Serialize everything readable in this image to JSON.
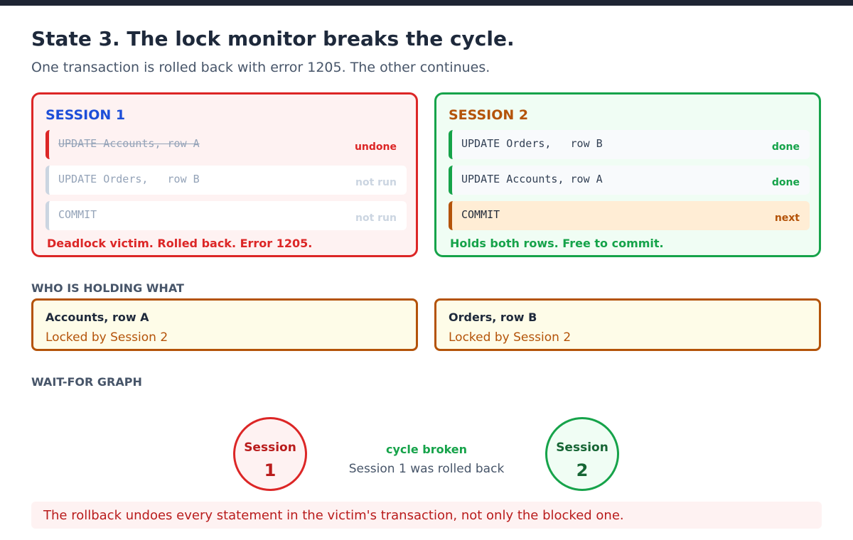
{
  "header": {
    "title": "State 3. The lock monitor breaks the cycle.",
    "subtitle": "One transaction is rolled back with error 1205. The other continues."
  },
  "sessions": [
    {
      "title": "SESSION 1",
      "statements": [
        {
          "code": "UPDATE Accounts, row A",
          "status": "undone"
        },
        {
          "code": "UPDATE Orders,   row B",
          "status": "not run"
        },
        {
          "code": "COMMIT",
          "status": "not run"
        }
      ],
      "footer": "Deadlock victim. Rolled back. Error 1205."
    },
    {
      "title": "SESSION 2",
      "statements": [
        {
          "code": "UPDATE Orders,   row B",
          "status": "done"
        },
        {
          "code": "UPDATE Accounts, row A",
          "status": "done"
        },
        {
          "code": "COMMIT",
          "status": "next"
        }
      ],
      "footer": "Holds both rows. Free to commit."
    }
  ],
  "locks": {
    "label": "WHO IS HOLDING WHAT",
    "items": [
      {
        "name": "Accounts, row A",
        "holder": "Locked by Session 2"
      },
      {
        "name": "Orders, row B",
        "holder": "Locked by Session 2"
      }
    ]
  },
  "graph": {
    "label": "WAIT-FOR GRAPH",
    "nodes": [
      {
        "label": "Session",
        "number": "1"
      },
      {
        "label": "Session",
        "number": "2"
      }
    ],
    "edge_title": "cycle broken",
    "edge_subtitle": "Session 1 was rolled back"
  },
  "note": "The rollback undoes every statement in the victim's transaction, not only the blocked one.",
  "colors": {
    "victim": "#dc2626",
    "survivor": "#16a34a",
    "lock": "#b45309",
    "session1_title": "#1d4ed8"
  }
}
